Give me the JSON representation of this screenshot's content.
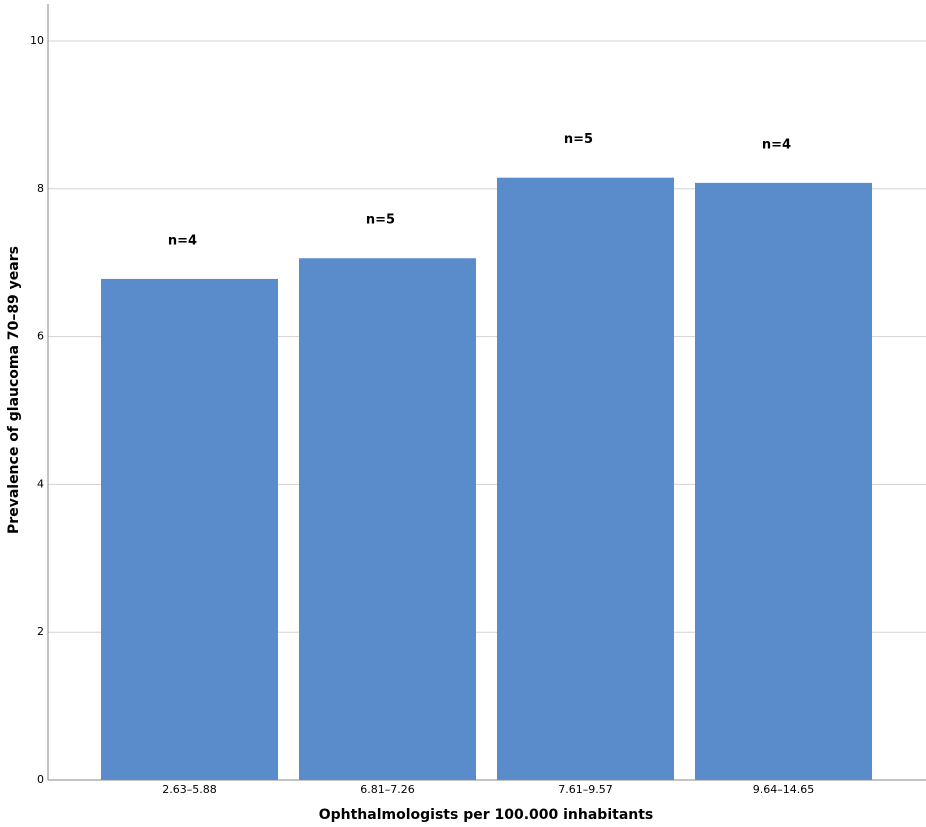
{
  "chart_data": {
    "type": "bar",
    "x_label": "Ophthalmologists per 100.000 inhabitants",
    "y_label": "Prevalence of glaucoma 70–89 years",
    "categories": [
      "2.63–5.88",
      "6.81–7.26",
      "7.61–9.57",
      "9.64–14.65"
    ],
    "values": [
      6.78,
      7.06,
      8.15,
      8.08
    ],
    "annotations": [
      "n=4",
      "n=5",
      "n=5",
      "n=4"
    ],
    "color": "#5a8ccb",
    "ylim": [
      0,
      10.5
    ],
    "yticks": [
      0,
      2,
      4,
      6,
      8,
      10
    ],
    "grid": true
  }
}
